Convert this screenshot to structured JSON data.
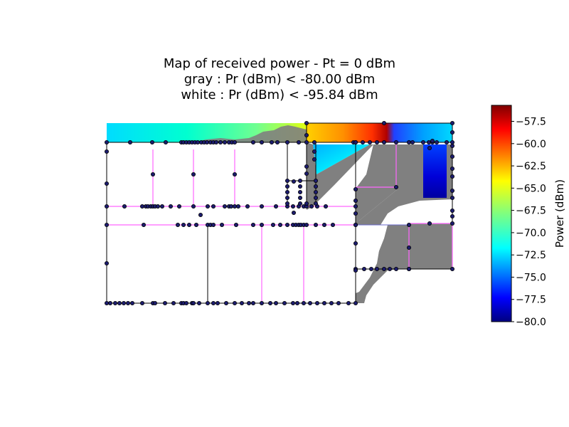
{
  "chart_data": {
    "type": "heatmap",
    "title": "Map of received power - Pt = 0 dBm",
    "subtitle_lines": [
      "gray : Pr (dBm) < -80.00 dBm",
      "white : Pr (dBm) < -95.84 dBm"
    ],
    "colorbar": {
      "label": "Power (dBm)",
      "range": [
        -80.0,
        -55.7
      ],
      "ticks": [
        -57.5,
        -60.0,
        -62.5,
        -65.0,
        -67.5,
        -70.0,
        -72.5,
        -75.0,
        -77.5,
        -80.0
      ],
      "tick_labels": [
        "−57.5",
        "−60.0",
        "−62.5",
        "−65.0",
        "−67.5",
        "−70.0",
        "−72.5",
        "−75.0",
        "−77.5",
        "−80.0"
      ],
      "colormap": "jet"
    },
    "thresholds": {
      "gray_below_dbm": -80.0,
      "white_below_dbm": -95.84
    },
    "colors": {
      "gray": "#808080",
      "wall_black": "#000000",
      "wall_magenta": "#ff66ff",
      "node_fill": "#1c1c6e",
      "node_stroke": "#000000"
    }
  }
}
